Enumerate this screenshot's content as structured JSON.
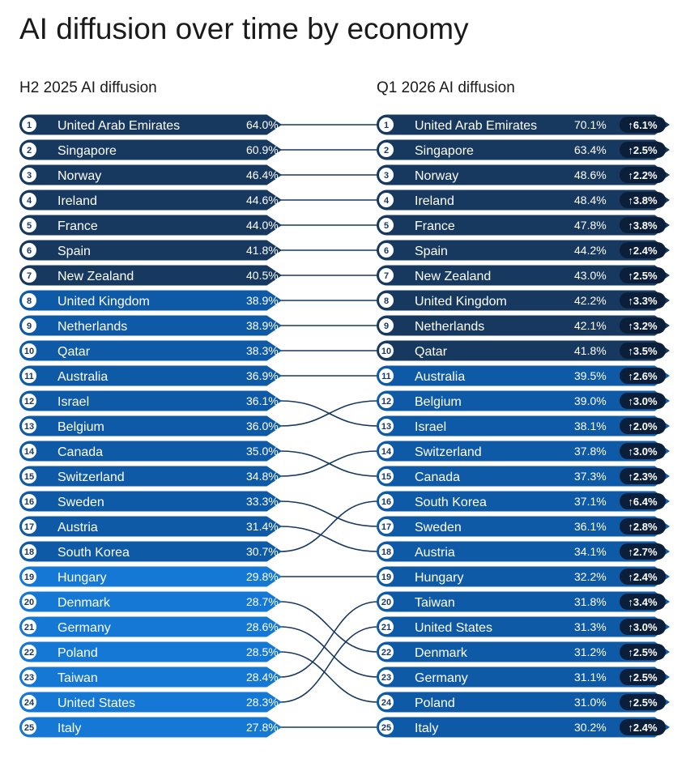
{
  "chart_data": {
    "type": "table",
    "title": "AI diffusion over time by economy",
    "left_header": "H2 2025 AI diffusion",
    "right_header": "Q1 2026 AI diffusion",
    "left": [
      {
        "rank": 1,
        "name": "United Arab Emirates",
        "value": "64.0%"
      },
      {
        "rank": 2,
        "name": "Singapore",
        "value": "60.9%"
      },
      {
        "rank": 3,
        "name": "Norway",
        "value": "46.4%"
      },
      {
        "rank": 4,
        "name": "Ireland",
        "value": "44.6%"
      },
      {
        "rank": 5,
        "name": "France",
        "value": "44.0%"
      },
      {
        "rank": 6,
        "name": "Spain",
        "value": "41.8%"
      },
      {
        "rank": 7,
        "name": "New Zealand",
        "value": "40.5%"
      },
      {
        "rank": 8,
        "name": "United Kingdom",
        "value": "38.9%"
      },
      {
        "rank": 9,
        "name": "Netherlands",
        "value": "38.9%"
      },
      {
        "rank": 10,
        "name": "Qatar",
        "value": "38.3%"
      },
      {
        "rank": 11,
        "name": "Australia",
        "value": "36.9%"
      },
      {
        "rank": 12,
        "name": "Israel",
        "value": "36.1%"
      },
      {
        "rank": 13,
        "name": "Belgium",
        "value": "36.0%"
      },
      {
        "rank": 14,
        "name": "Canada",
        "value": "35.0%"
      },
      {
        "rank": 15,
        "name": "Switzerland",
        "value": "34.8%"
      },
      {
        "rank": 16,
        "name": "Sweden",
        "value": "33.3%"
      },
      {
        "rank": 17,
        "name": "Austria",
        "value": "31.4%"
      },
      {
        "rank": 18,
        "name": "South Korea",
        "value": "30.7%"
      },
      {
        "rank": 19,
        "name": "Hungary",
        "value": "29.8%"
      },
      {
        "rank": 20,
        "name": "Denmark",
        "value": "28.7%"
      },
      {
        "rank": 21,
        "name": "Germany",
        "value": "28.6%"
      },
      {
        "rank": 22,
        "name": "Poland",
        "value": "28.5%"
      },
      {
        "rank": 23,
        "name": "Taiwan",
        "value": "28.4%"
      },
      {
        "rank": 24,
        "name": "United States",
        "value": "28.3%"
      },
      {
        "rank": 25,
        "name": "Italy",
        "value": "27.8%"
      }
    ],
    "right": [
      {
        "rank": 1,
        "name": "United Arab Emirates",
        "value": "70.1%",
        "change": "↑6.1%"
      },
      {
        "rank": 2,
        "name": "Singapore",
        "value": "63.4%",
        "change": "↑2.5%"
      },
      {
        "rank": 3,
        "name": "Norway",
        "value": "48.6%",
        "change": "↑2.2%"
      },
      {
        "rank": 4,
        "name": "Ireland",
        "value": "48.4%",
        "change": "↑3.8%"
      },
      {
        "rank": 5,
        "name": "France",
        "value": "47.8%",
        "change": "↑3.8%"
      },
      {
        "rank": 6,
        "name": "Spain",
        "value": "44.2%",
        "change": "↑2.4%"
      },
      {
        "rank": 7,
        "name": "New Zealand",
        "value": "43.0%",
        "change": "↑2.5%"
      },
      {
        "rank": 8,
        "name": "United Kingdom",
        "value": "42.2%",
        "change": "↑3.3%"
      },
      {
        "rank": 9,
        "name": "Netherlands",
        "value": "42.1%",
        "change": "↑3.2%"
      },
      {
        "rank": 10,
        "name": "Qatar",
        "value": "41.8%",
        "change": "↑3.5%"
      },
      {
        "rank": 11,
        "name": "Australia",
        "value": "39.5%",
        "change": "↑2.6%"
      },
      {
        "rank": 12,
        "name": "Belgium",
        "value": "39.0%",
        "change": "↑3.0%"
      },
      {
        "rank": 13,
        "name": "Israel",
        "value": "38.1%",
        "change": "↑2.0%"
      },
      {
        "rank": 14,
        "name": "Switzerland",
        "value": "37.8%",
        "change": "↑3.0%"
      },
      {
        "rank": 15,
        "name": "Canada",
        "value": "37.3%",
        "change": "↑2.3%"
      },
      {
        "rank": 16,
        "name": "South Korea",
        "value": "37.1%",
        "change": "↑6.4%"
      },
      {
        "rank": 17,
        "name": "Sweden",
        "value": "36.1%",
        "change": "↑2.8%"
      },
      {
        "rank": 18,
        "name": "Austria",
        "value": "34.1%",
        "change": "↑2.7%"
      },
      {
        "rank": 19,
        "name": "Hungary",
        "value": "32.2%",
        "change": "↑2.4%"
      },
      {
        "rank": 20,
        "name": "Taiwan",
        "value": "31.8%",
        "change": "↑3.4%"
      },
      {
        "rank": 21,
        "name": "United States",
        "value": "31.3%",
        "change": "↑3.0%"
      },
      {
        "rank": 22,
        "name": "Denmark",
        "value": "31.2%",
        "change": "↑2.5%"
      },
      {
        "rank": 23,
        "name": "Germany",
        "value": "31.1%",
        "change": "↑2.5%"
      },
      {
        "rank": 24,
        "name": "Poland",
        "value": "31.0%",
        "change": "↑2.5%"
      },
      {
        "rank": 25,
        "name": "Italy",
        "value": "30.2%",
        "change": "↑2.4%"
      }
    ],
    "colors": {
      "row_dark": "#17385f",
      "row_mid": "#0f5aa6",
      "row_light": "#1478d4",
      "connector": "#17385f",
      "change_badge": "#0b1f3b",
      "rank_circle": "#ffffff"
    }
  }
}
